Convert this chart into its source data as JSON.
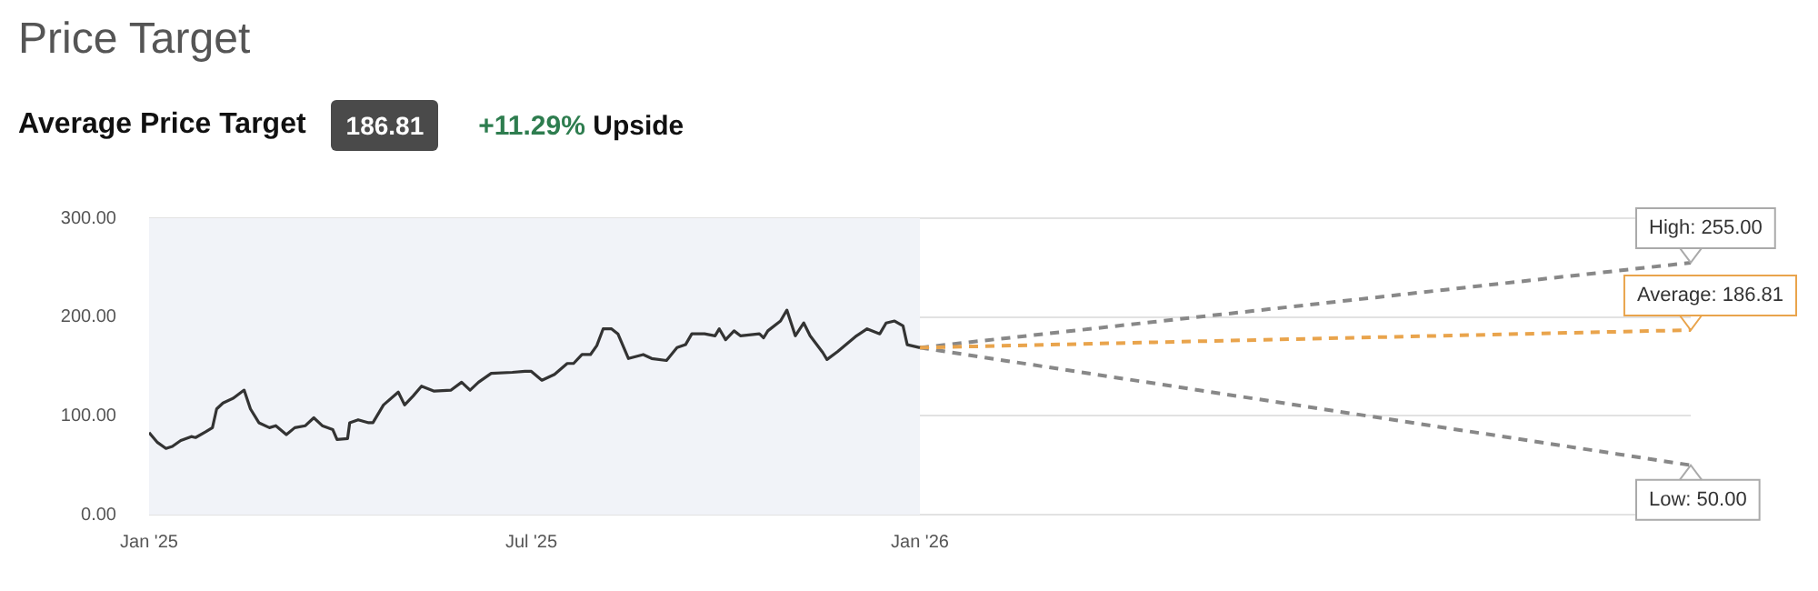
{
  "chart_data": {
    "type": "line",
    "title": "Price Target",
    "subtitle": "Average Price Target",
    "annotations": [
      "186.81",
      "+11.29% Upside",
      {
        "text": "High: 255.00",
        "x": "2027-01-01",
        "y": 255
      },
      {
        "text": "Average: 186.81",
        "x": "2027-01-01",
        "y": 186.81
      },
      {
        "text": "Low: 50.00",
        "x": "2027-01-01",
        "y": 50
      }
    ],
    "xlim": [
      "2025-01-01",
      "2027-01-01"
    ],
    "xticks": [
      {
        "value": "2025-01-01",
        "label": "Jan '25"
      },
      {
        "value": "2025-07-01",
        "label": "Jul '25"
      },
      {
        "value": "2026-01-01",
        "label": "Jan '26"
      }
    ],
    "ylim": [
      0,
      300
    ],
    "yticks": [
      {
        "value": 0,
        "label": "0.00"
      },
      {
        "value": 100,
        "label": "100.00"
      },
      {
        "value": 200,
        "label": "200.00"
      },
      {
        "value": 300,
        "label": "300.00"
      }
    ],
    "grid": "y",
    "legend": false,
    "marker": "none",
    "bands": [
      {
        "axis": "x",
        "from": "2025-01-01",
        "to": "2026-01-01",
        "color": "#f1f3f8"
      }
    ],
    "series": [
      {
        "color": "#333333",
        "line_style": "solid",
        "x": [
          "2025-01-01",
          "2025-01-05",
          "2025-01-09",
          "2025-01-12",
          "2025-01-16",
          "2025-01-21",
          "2025-01-23",
          "2025-01-28",
          "2025-01-31",
          "2025-02-02",
          "2025-02-05",
          "2025-02-10",
          "2025-02-15",
          "2025-02-18",
          "2025-02-22",
          "2025-02-27",
          "2025-03-02",
          "2025-03-07",
          "2025-03-11",
          "2025-03-16",
          "2025-03-20",
          "2025-03-24",
          "2025-03-29",
          "2025-03-31",
          "2025-04-05",
          "2025-04-06",
          "2025-04-10",
          "2025-04-15",
          "2025-04-17",
          "2025-04-22",
          "2025-04-29",
          "2025-05-02",
          "2025-05-06",
          "2025-05-10",
          "2025-05-16",
          "2025-05-24",
          "2025-05-29",
          "2025-06-02",
          "2025-06-06",
          "2025-06-12",
          "2025-06-22",
          "2025-06-28",
          "2025-07-01",
          "2025-07-06",
          "2025-07-12",
          "2025-07-18",
          "2025-07-21",
          "2025-07-25",
          "2025-07-29",
          "2025-08-01",
          "2025-08-04",
          "2025-08-08",
          "2025-08-11",
          "2025-08-16",
          "2025-08-23",
          "2025-08-27",
          "2025-09-03",
          "2025-09-08",
          "2025-09-12",
          "2025-09-15",
          "2025-09-21",
          "2025-09-26",
          "2025-09-28",
          "2025-10-01",
          "2025-10-05",
          "2025-10-08",
          "2025-10-17",
          "2025-10-19",
          "2025-10-21",
          "2025-10-27",
          "2025-10-30",
          "2025-11-03",
          "2025-11-07",
          "2025-11-10",
          "2025-11-16",
          "2025-11-18",
          "2025-11-23",
          "2025-12-02",
          "2025-12-07",
          "2025-12-13",
          "2025-12-16",
          "2025-12-20",
          "2025-12-24",
          "2025-12-26",
          "2026-01-01"
        ],
        "values": [
          83,
          73,
          67,
          69,
          75,
          79,
          78,
          84,
          88,
          107,
          113,
          118,
          126,
          107,
          93,
          88,
          90,
          81,
          88,
          90,
          98,
          90,
          86,
          76,
          77,
          93,
          96,
          93,
          93,
          111,
          124,
          111,
          120,
          130,
          125,
          126,
          134,
          126,
          134,
          143,
          144,
          145,
          145,
          136,
          142,
          153,
          153,
          162,
          162,
          171,
          188,
          188,
          183,
          158,
          162,
          158,
          156,
          169,
          172,
          183,
          183,
          181,
          188,
          177,
          186,
          181,
          183,
          179,
          186,
          196,
          207,
          181,
          194,
          181,
          164,
          157,
          165,
          181,
          188,
          183,
          194,
          196,
          191,
          172,
          169
        ]
      },
      {
        "color": "#888888",
        "line_style": "dashed",
        "x": [
          "2026-01-01",
          "2027-01-01"
        ],
        "values": [
          169,
          255
        ]
      },
      {
        "color": "#e9a44c",
        "line_style": "dashed",
        "x": [
          "2026-01-01",
          "2027-01-01"
        ],
        "values": [
          169,
          186.81
        ]
      },
      {
        "color": "#888888",
        "line_style": "dashed",
        "x": [
          "2026-01-01",
          "2027-01-01"
        ],
        "values": [
          169,
          50
        ]
      }
    ]
  }
}
